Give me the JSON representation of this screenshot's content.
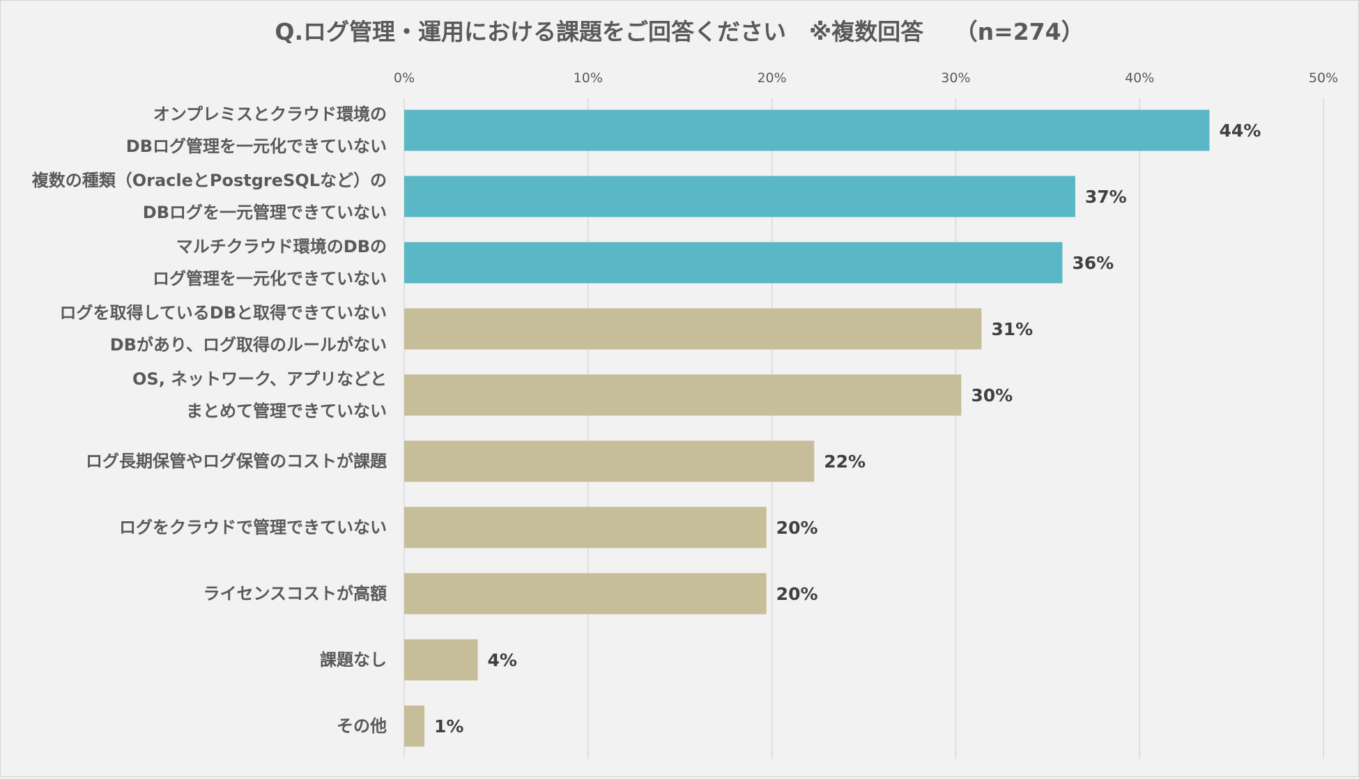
{
  "chart_data": {
    "type": "bar",
    "orientation": "horizontal",
    "title": "Q.ログ管理・運用における課題をご回答ください　※複数回答　 （n=274）",
    "x_ticks": [
      "0%",
      "10%",
      "20%",
      "30%",
      "40%",
      "50%"
    ],
    "xlim": [
      0,
      50
    ],
    "x_axis_position": "top",
    "grid": true,
    "legend": "none",
    "value_unit": "%",
    "categories": [
      [
        "オンプレミスとクラウド環境の",
        "DBログ管理を一元化できていない"
      ],
      [
        "複数の種類（OracleとPostgreSQLなど）の",
        "DBログを一元管理できていない"
      ],
      [
        "マルチクラウド環境のDBの",
        "ログ管理を一元化できていない"
      ],
      [
        "ログを取得しているDBと取得できていない",
        "DBがあり、ログ取得のルールがない"
      ],
      [
        "OS, ネットワーク、アプリなどと",
        "まとめて管理できていない"
      ],
      [
        "ログ長期保管やログ保管のコストが課題"
      ],
      [
        "ログをクラウドで管理できていない"
      ],
      [
        "ライセンスコストが高額"
      ],
      [
        "課題なし"
      ],
      [
        "その他"
      ]
    ],
    "values": [
      44,
      37,
      36,
      31,
      30,
      22,
      20,
      20,
      4,
      1
    ],
    "plotted_values": [
      43.8,
      36.5,
      35.8,
      31.4,
      30.3,
      22.3,
      19.7,
      19.7,
      4.0,
      1.1
    ],
    "value_labels": [
      "44%",
      "37%",
      "36%",
      "31%",
      "30%",
      "22%",
      "20%",
      "20%",
      "4%",
      "1%"
    ],
    "bar_colors": [
      "#5ab7c6",
      "#5ab7c6",
      "#5ab7c6",
      "#c5be98",
      "#c5be98",
      "#c5be98",
      "#c5be98",
      "#c5be98",
      "#c5be98",
      "#c5be98"
    ]
  }
}
